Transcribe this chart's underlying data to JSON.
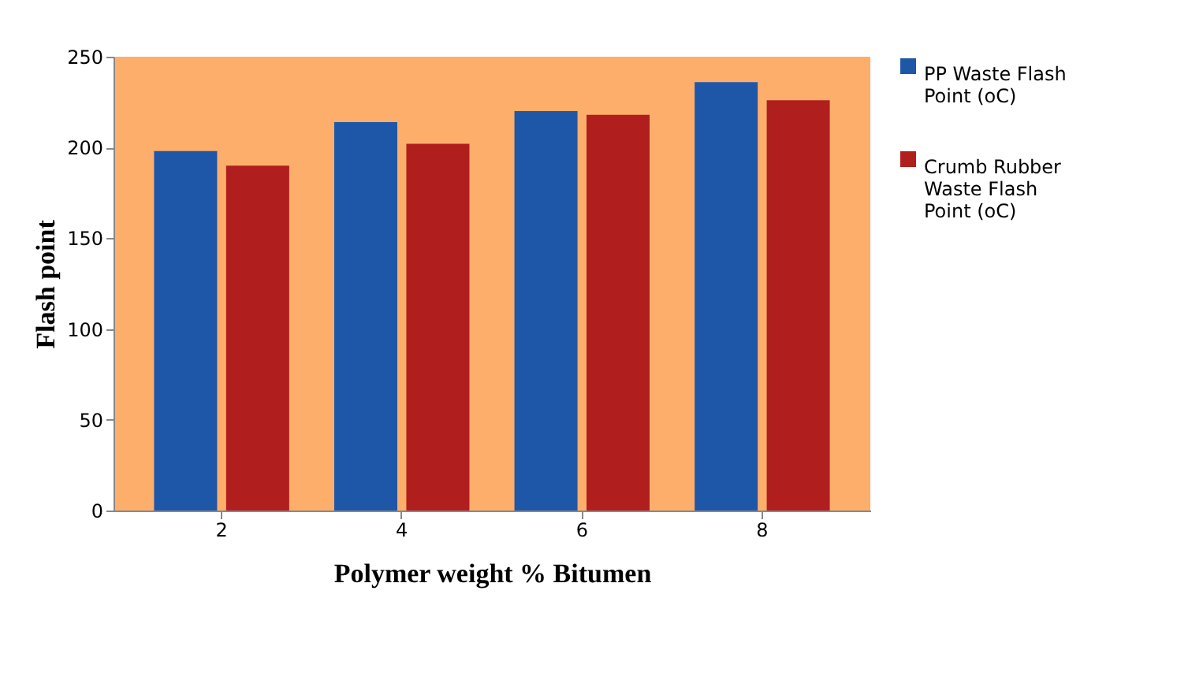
{
  "chart_data": {
    "type": "bar",
    "xlabel": "Polymer weight % Bitumen",
    "ylabel": "Flash point",
    "categories": [
      "2",
      "4",
      "6",
      "8"
    ],
    "series": [
      {
        "name": "PP Waste Flash Point (oC)",
        "color": "#1f57a8",
        "values": [
          198,
          214,
          220,
          236
        ]
      },
      {
        "name": "Crumb Rubber Waste Flash Point (oC)",
        "color": "#b01e1e",
        "values": [
          190,
          202,
          218,
          226
        ]
      }
    ],
    "ylim": [
      0,
      250
    ],
    "yticks": [
      0,
      50,
      100,
      150,
      200,
      250
    ],
    "grid": false,
    "legend": "right"
  }
}
